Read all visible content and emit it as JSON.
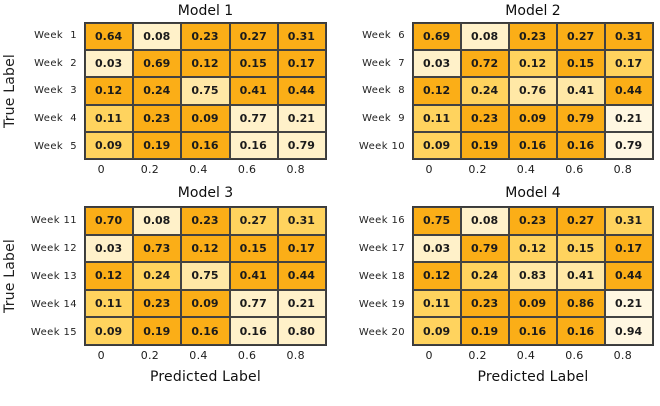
{
  "palette": {
    "background": "#FFFFFF",
    "grid_border": "#3A3A3A",
    "value_text": "#1B1B1B",
    "cells": {
      "dark": "#FBAE17",
      "medium": "#FFD35E",
      "light": "#FFE8A6",
      "cream": "#FFF1C9",
      "pale": "#FFF7E1"
    }
  },
  "axis": {
    "y_label": "True Label",
    "x_label": "Predicted Label",
    "x_ticks": [
      "0",
      "0.2",
      "0.4",
      "0.6",
      "0.8"
    ]
  },
  "panels": [
    {
      "title": "Model 1",
      "row_labels": [
        "Week  1",
        "Week  2",
        "Week  3",
        "Week  4",
        "Week  5"
      ],
      "values": [
        [
          "0.64",
          "0.08",
          "0.23",
          "0.27",
          "0.31"
        ],
        [
          "0.03",
          "0.69",
          "0.12",
          "0.15",
          "0.17"
        ],
        [
          "0.12",
          "0.24",
          "0.75",
          "0.41",
          "0.44"
        ],
        [
          "0.11",
          "0.23",
          "0.09",
          "0.77",
          "0.21"
        ],
        [
          "0.09",
          "0.19",
          "0.16",
          "0.16",
          "0.79"
        ]
      ],
      "cell_shades": [
        [
          "dark",
          "cream",
          "dark",
          "dark",
          "dark"
        ],
        [
          "cream",
          "dark",
          "dark",
          "dark",
          "dark"
        ],
        [
          "dark",
          "dark",
          "light",
          "dark",
          "dark"
        ],
        [
          "medium",
          "dark",
          "dark",
          "cream",
          "cream"
        ],
        [
          "medium",
          "dark",
          "dark",
          "cream",
          "cream"
        ]
      ]
    },
    {
      "title": "Model 2",
      "row_labels": [
        "Week  6",
        "Week  7",
        "Week  8",
        "Week  9",
        "Week 10"
      ],
      "values": [
        [
          "0.69",
          "0.08",
          "0.23",
          "0.27",
          "0.31"
        ],
        [
          "0.03",
          "0.72",
          "0.12",
          "0.15",
          "0.17"
        ],
        [
          "0.12",
          "0.24",
          "0.76",
          "0.41",
          "0.44"
        ],
        [
          "0.11",
          "0.23",
          "0.09",
          "0.79",
          "0.21"
        ],
        [
          "0.09",
          "0.19",
          "0.16",
          "0.16",
          "0.79"
        ]
      ],
      "cell_shades": [
        [
          "dark",
          "cream",
          "dark",
          "dark",
          "dark"
        ],
        [
          "cream",
          "dark",
          "medium",
          "dark",
          "medium"
        ],
        [
          "dark",
          "medium",
          "light",
          "light",
          "dark"
        ],
        [
          "medium",
          "dark",
          "dark",
          "dark",
          "pale"
        ],
        [
          "medium",
          "dark",
          "dark",
          "dark",
          "pale"
        ]
      ]
    },
    {
      "title": "Model 3",
      "row_labels": [
        "Week 11",
        "Week 12",
        "Week 13",
        "Week 14",
        "Week 15"
      ],
      "values": [
        [
          "0.70",
          "0.08",
          "0.23",
          "0.27",
          "0.31"
        ],
        [
          "0.03",
          "0.73",
          "0.12",
          "0.15",
          "0.17"
        ],
        [
          "0.12",
          "0.24",
          "0.75",
          "0.41",
          "0.44"
        ],
        [
          "0.11",
          "0.23",
          "0.09",
          "0.77",
          "0.21"
        ],
        [
          "0.09",
          "0.19",
          "0.16",
          "0.16",
          "0.80"
        ]
      ],
      "cell_shades": [
        [
          "dark",
          "cream",
          "dark",
          "medium",
          "medium"
        ],
        [
          "cream",
          "dark",
          "dark",
          "dark",
          "dark"
        ],
        [
          "dark",
          "medium",
          "light",
          "dark",
          "dark"
        ],
        [
          "medium",
          "dark",
          "dark",
          "cream",
          "cream"
        ],
        [
          "medium",
          "dark",
          "dark",
          "cream",
          "cream"
        ]
      ]
    },
    {
      "title": "Model 4",
      "row_labels": [
        "Week 16",
        "Week 17",
        "Week 18",
        "Week 19",
        "Week 20"
      ],
      "values": [
        [
          "0.75",
          "0.08",
          "0.23",
          "0.27",
          "0.31"
        ],
        [
          "0.03",
          "0.79",
          "0.12",
          "0.15",
          "0.17"
        ],
        [
          "0.12",
          "0.24",
          "0.83",
          "0.41",
          "0.44"
        ],
        [
          "0.11",
          "0.23",
          "0.09",
          "0.86",
          "0.21"
        ],
        [
          "0.09",
          "0.19",
          "0.16",
          "0.16",
          "0.94"
        ]
      ],
      "cell_shades": [
        [
          "dark",
          "cream",
          "dark",
          "dark",
          "medium"
        ],
        [
          "cream",
          "dark",
          "medium",
          "medium",
          "dark"
        ],
        [
          "dark",
          "medium",
          "light",
          "light",
          "dark"
        ],
        [
          "medium",
          "dark",
          "dark",
          "dark",
          "pale"
        ],
        [
          "medium",
          "dark",
          "dark",
          "dark",
          "pale"
        ]
      ]
    }
  ],
  "chart_data": [
    {
      "type": "heatmap",
      "title": "Model 1",
      "ylabel": "True Label",
      "xlabel": "",
      "categories": [
        "Week 1",
        "Week 2",
        "Week 3",
        "Week 4",
        "Week 5"
      ],
      "x_tick_labels": [
        0,
        0.2,
        0.4,
        0.6,
        0.8
      ],
      "values": [
        [
          0.64,
          0.08,
          0.23,
          0.27,
          0.31
        ],
        [
          0.03,
          0.69,
          0.12,
          0.15,
          0.17
        ],
        [
          0.12,
          0.24,
          0.75,
          0.41,
          0.44
        ],
        [
          0.11,
          0.23,
          0.09,
          0.77,
          0.21
        ],
        [
          0.09,
          0.19,
          0.16,
          0.16,
          0.79
        ]
      ],
      "grid": true,
      "legend": false
    },
    {
      "type": "heatmap",
      "title": "Model 2",
      "ylabel": "",
      "xlabel": "",
      "categories": [
        "Week 6",
        "Week 7",
        "Week 8",
        "Week 9",
        "Week 10"
      ],
      "x_tick_labels": [
        0,
        0.2,
        0.4,
        0.6,
        0.8
      ],
      "values": [
        [
          0.69,
          0.08,
          0.23,
          0.27,
          0.31
        ],
        [
          0.03,
          0.72,
          0.12,
          0.15,
          0.17
        ],
        [
          0.12,
          0.24,
          0.76,
          0.41,
          0.44
        ],
        [
          0.11,
          0.23,
          0.09,
          0.79,
          0.21
        ],
        [
          0.09,
          0.19,
          0.16,
          0.16,
          0.79
        ]
      ],
      "grid": true,
      "legend": false
    },
    {
      "type": "heatmap",
      "title": "Model 3",
      "ylabel": "True Label",
      "xlabel": "Predicted Label",
      "categories": [
        "Week 11",
        "Week 12",
        "Week 13",
        "Week 14",
        "Week 15"
      ],
      "x_tick_labels": [
        0,
        0.2,
        0.4,
        0.6,
        0.8
      ],
      "values": [
        [
          0.7,
          0.08,
          0.23,
          0.27,
          0.31
        ],
        [
          0.03,
          0.73,
          0.12,
          0.15,
          0.17
        ],
        [
          0.12,
          0.24,
          0.75,
          0.41,
          0.44
        ],
        [
          0.11,
          0.23,
          0.09,
          0.77,
          0.21
        ],
        [
          0.09,
          0.19,
          0.16,
          0.16,
          0.8
        ]
      ],
      "grid": true,
      "legend": false
    },
    {
      "type": "heatmap",
      "title": "Model 4",
      "ylabel": "",
      "xlabel": "Predicted Label",
      "categories": [
        "Week 16",
        "Week 17",
        "Week 18",
        "Week 19",
        "Week 20"
      ],
      "x_tick_labels": [
        0,
        0.2,
        0.4,
        0.6,
        0.8
      ],
      "values": [
        [
          0.75,
          0.08,
          0.23,
          0.27,
          0.31
        ],
        [
          0.03,
          0.79,
          0.12,
          0.15,
          0.17
        ],
        [
          0.12,
          0.24,
          0.83,
          0.41,
          0.44
        ],
        [
          0.11,
          0.23,
          0.09,
          0.86,
          0.21
        ],
        [
          0.09,
          0.19,
          0.16,
          0.16,
          0.94
        ]
      ],
      "grid": true,
      "legend": false
    }
  ]
}
